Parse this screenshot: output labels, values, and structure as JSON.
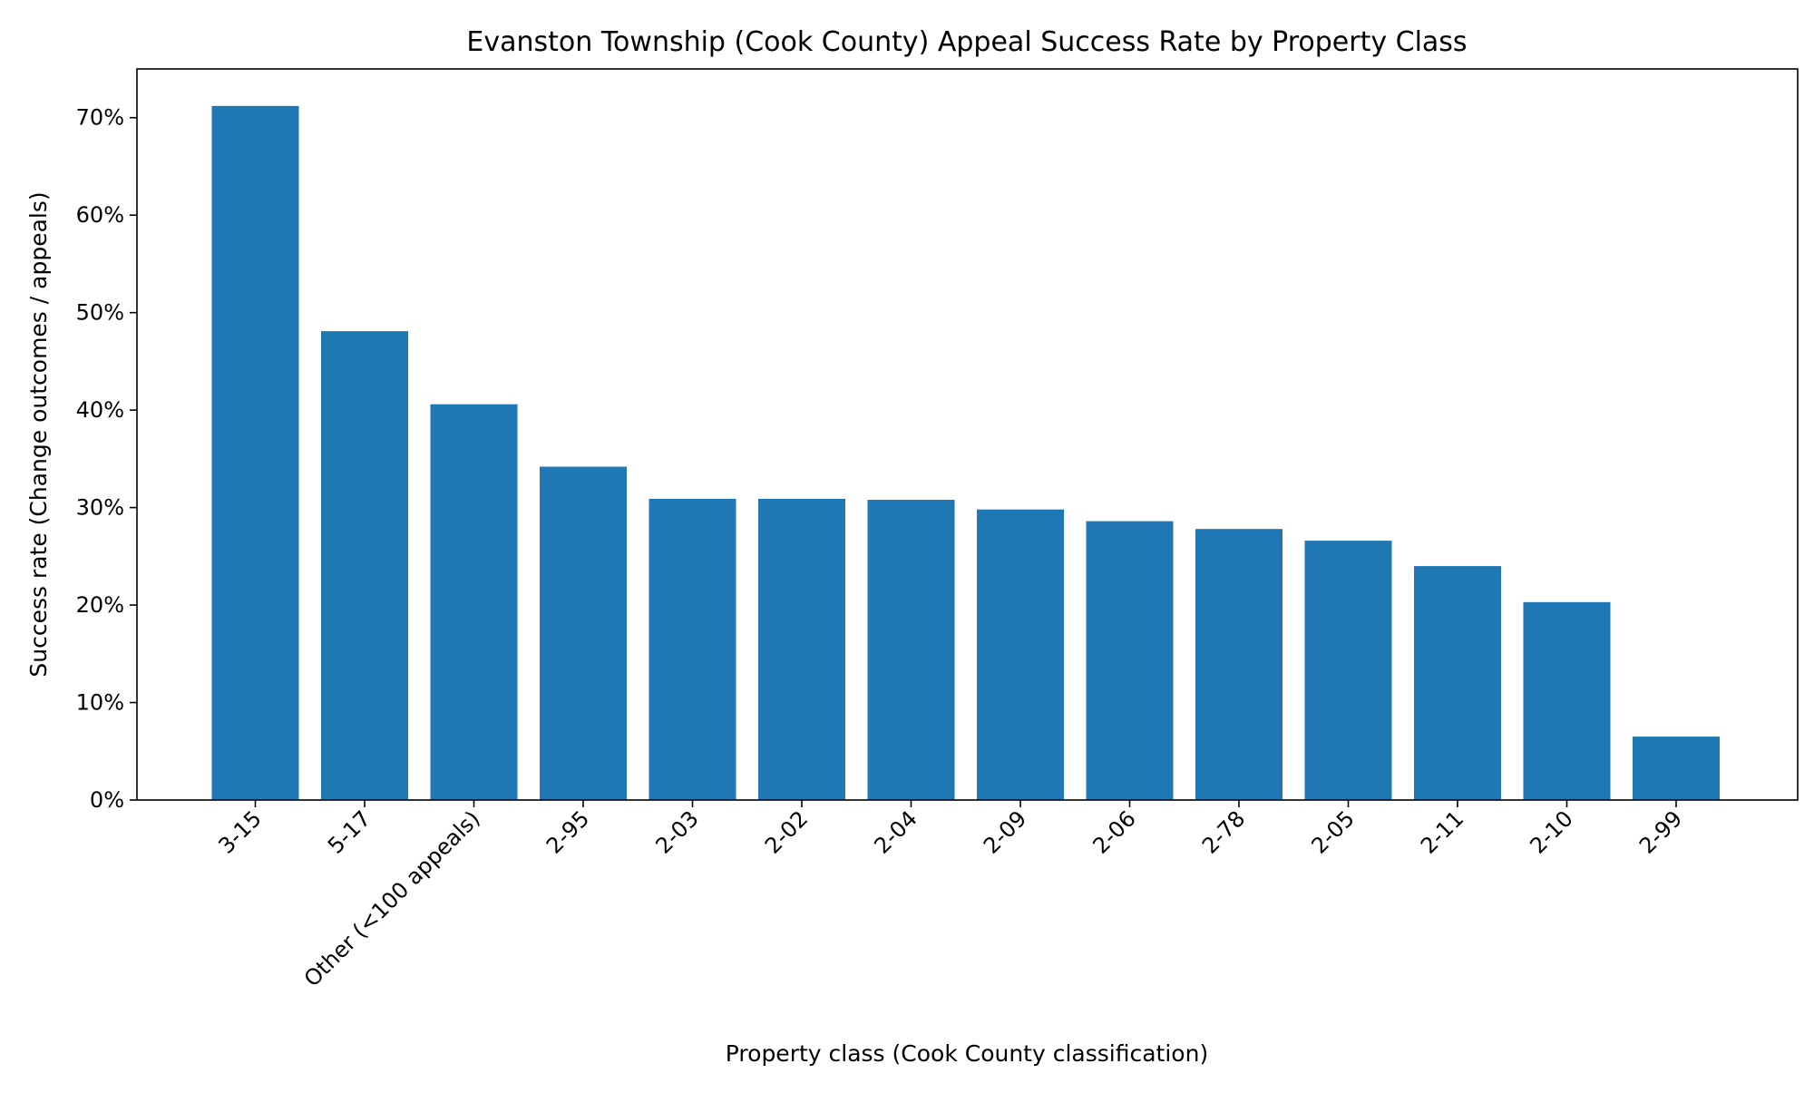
{
  "chart_data": {
    "type": "bar",
    "title": "Evanston Township (Cook County) Appeal Success Rate by Property Class",
    "xlabel": "Property class (Cook County classification)",
    "ylabel": "Success rate (Change outcomes / appeals)",
    "categories": [
      "3-15",
      "5-17",
      "Other (<100 appeals)",
      "2-95",
      "2-03",
      "2-02",
      "2-04",
      "2-09",
      "2-06",
      "2-78",
      "2-05",
      "2-11",
      "2-10",
      "2-99"
    ],
    "values": [
      71.2,
      48.1,
      40.6,
      34.2,
      30.9,
      30.9,
      30.8,
      29.8,
      28.6,
      27.8,
      26.6,
      24.0,
      20.3,
      6.5
    ],
    "value_unit": "%",
    "ylim": [
      0,
      75
    ],
    "yticks": [
      0,
      10,
      20,
      30,
      40,
      50,
      60,
      70
    ],
    "ytick_labels": [
      "0%",
      "10%",
      "20%",
      "30%",
      "40%",
      "50%",
      "60%",
      "70%"
    ],
    "grid": false,
    "bar_color": "#1f77b4",
    "legend": "none"
  }
}
